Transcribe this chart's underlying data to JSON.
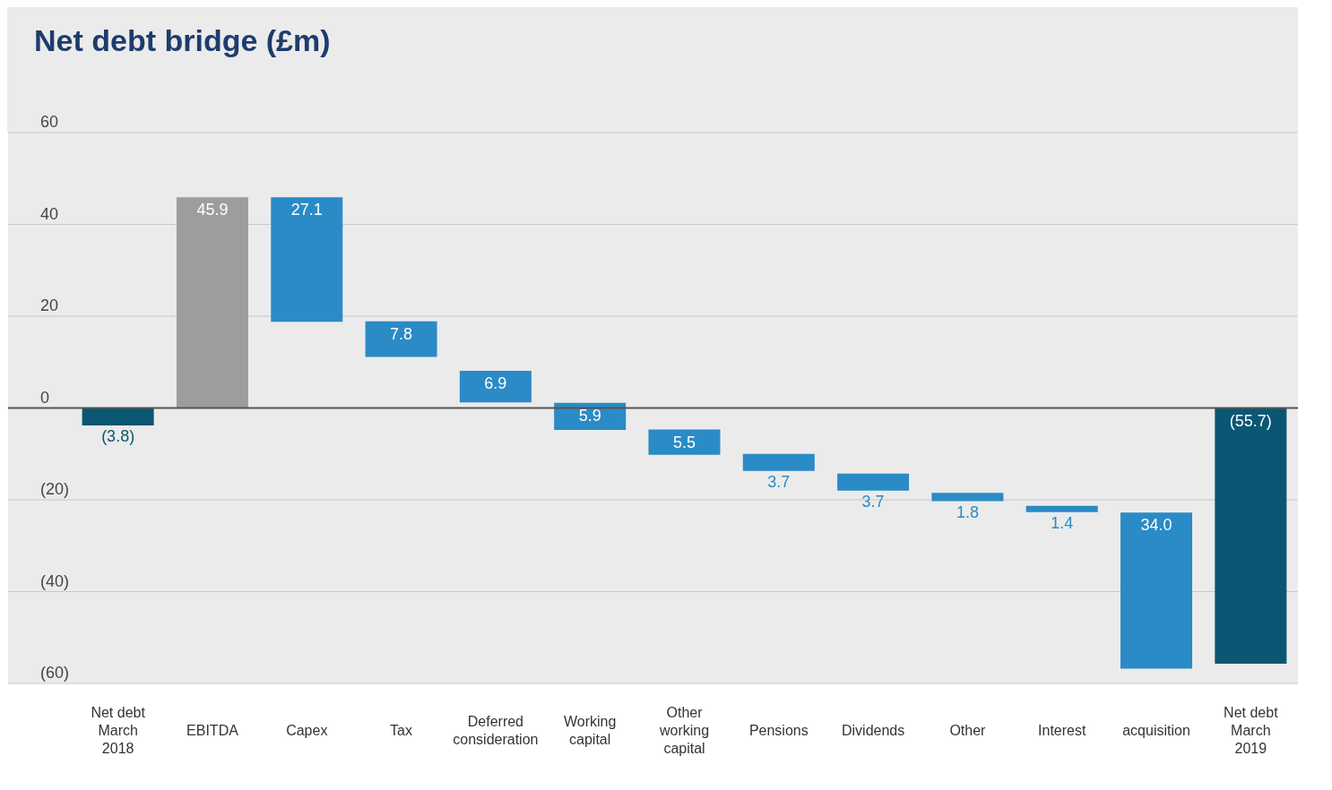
{
  "chart_data": {
    "type": "bar",
    "title": "Net debt bridge (£m)",
    "categories": [
      "Net debt March 2018",
      "EBITDA",
      "Capex",
      "Tax",
      "Deferred consideration",
      "Working capital",
      "Other working capital",
      "Pensions",
      "Dividends",
      "Other",
      "Interest",
      "acquisition",
      "Net debt March 2019"
    ],
    "base": [
      0,
      0,
      45.9,
      18.9,
      8.1,
      1.1,
      -4.7,
      -10.0,
      -14.3,
      -18.5,
      -21.3,
      -22.8,
      0
    ],
    "values": [
      -3.8,
      45.9,
      -27.1,
      -7.8,
      -6.9,
      -5.9,
      -5.5,
      -3.7,
      -3.7,
      -1.8,
      -1.4,
      -34.0,
      -55.7
    ],
    "value_labels": [
      "(3.8)",
      "45.9",
      "27.1",
      "7.8",
      "6.9",
      "5.9",
      "5.5",
      "3.7",
      "3.7",
      "1.8",
      "1.4",
      "34.0",
      "(55.7)"
    ],
    "colors": [
      "#0a5673",
      "#9d9d9c",
      "#2a8bc6",
      "#2a8bc6",
      "#2a8bc6",
      "#2a8bc6",
      "#2a8bc6",
      "#2a8bc6",
      "#2a8bc6",
      "#2a8bc6",
      "#2a8bc6",
      "#2a8bc6",
      "#0a5673"
    ],
    "ylim": [
      -60,
      60
    ],
    "yticks": [
      {
        "value": -60,
        "label": "(60)"
      },
      {
        "value": -40,
        "label": "(40)"
      },
      {
        "value": -20,
        "label": "(20)"
      },
      0,
      20,
      40,
      60
    ],
    "grid": "y",
    "ref_lines": [
      {
        "axis": "y",
        "value": 0,
        "color": "#555555"
      }
    ]
  }
}
